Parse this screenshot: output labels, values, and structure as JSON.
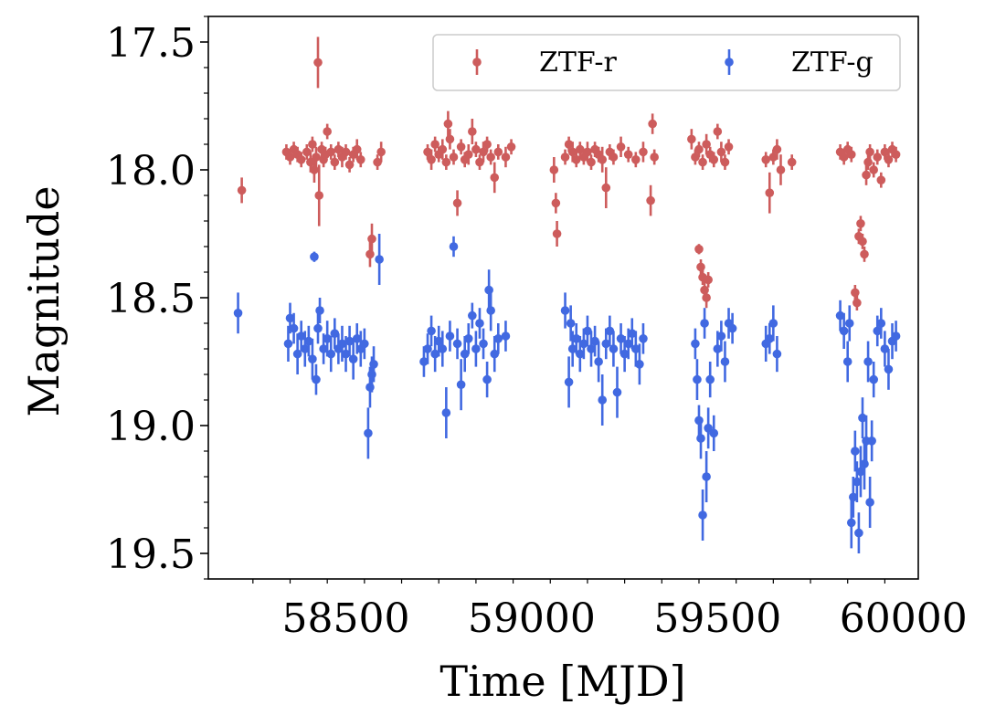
{
  "chart_data": {
    "type": "scatter",
    "xlabel": "Time [MJD]",
    "ylabel": "Magnitude",
    "xlim": [
      58130,
      60040
    ],
    "ylim": [
      19.6,
      17.4
    ],
    "y_inverted": true,
    "x_ticks": [
      58500,
      59000,
      59500,
      60000
    ],
    "x_tick_labels": [
      "58500",
      "59000",
      "59500",
      "60000"
    ],
    "y_ticks": [
      17.5,
      18.0,
      18.5,
      19.0,
      19.5
    ],
    "y_tick_labels": [
      "17.5",
      "18.0",
      "18.5",
      "19.0",
      "19.5"
    ],
    "grid": false,
    "legend": {
      "position": "top-right",
      "columns": 2
    },
    "series": [
      {
        "name": "ZTF-r",
        "color": "#cd5c5c",
        "points": [
          [
            58220,
            18.08,
            0.05
          ],
          [
            58340,
            17.93,
            0.03
          ],
          [
            58350,
            17.95,
            0.03
          ],
          [
            58360,
            17.92,
            0.03
          ],
          [
            58370,
            17.94,
            0.03
          ],
          [
            58380,
            17.96,
            0.03
          ],
          [
            58395,
            17.93,
            0.03
          ],
          [
            58405,
            17.97,
            0.04
          ],
          [
            58410,
            17.9,
            0.03
          ],
          [
            58415,
            18.0,
            0.05
          ],
          [
            58420,
            17.95,
            0.04
          ],
          [
            58425,
            17.58,
            0.1
          ],
          [
            58428,
            18.1,
            0.12
          ],
          [
            58435,
            17.92,
            0.03
          ],
          [
            58440,
            17.96,
            0.03
          ],
          [
            58445,
            17.94,
            0.03
          ],
          [
            58450,
            17.85,
            0.03
          ],
          [
            58460,
            17.93,
            0.03
          ],
          [
            58470,
            17.97,
            0.03
          ],
          [
            58480,
            17.92,
            0.03
          ],
          [
            58490,
            17.95,
            0.04
          ],
          [
            58500,
            17.93,
            0.03
          ],
          [
            58510,
            17.98,
            0.03
          ],
          [
            58520,
            17.94,
            0.03
          ],
          [
            58530,
            17.92,
            0.04
          ],
          [
            58540,
            17.96,
            0.03
          ],
          [
            58565,
            18.33,
            0.05
          ],
          [
            58570,
            18.27,
            0.06
          ],
          [
            58585,
            17.97,
            0.03
          ],
          [
            58595,
            17.93,
            0.04
          ],
          [
            58720,
            17.93,
            0.03
          ],
          [
            58730,
            17.96,
            0.04
          ],
          [
            58740,
            17.9,
            0.03
          ],
          [
            58750,
            17.94,
            0.03
          ],
          [
            58760,
            17.92,
            0.04
          ],
          [
            58770,
            17.97,
            0.03
          ],
          [
            58775,
            17.82,
            0.05
          ],
          [
            58780,
            17.88,
            0.04
          ],
          [
            58790,
            17.95,
            0.03
          ],
          [
            58800,
            18.13,
            0.05
          ],
          [
            58810,
            17.91,
            0.03
          ],
          [
            58820,
            17.96,
            0.03
          ],
          [
            58830,
            17.94,
            0.04
          ],
          [
            58840,
            17.85,
            0.05
          ],
          [
            58850,
            17.92,
            0.03
          ],
          [
            58860,
            17.97,
            0.03
          ],
          [
            58870,
            17.93,
            0.04
          ],
          [
            58880,
            17.9,
            0.03
          ],
          [
            58890,
            17.95,
            0.03
          ],
          [
            58900,
            18.03,
            0.06
          ],
          [
            58910,
            17.93,
            0.03
          ],
          [
            58930,
            17.95,
            0.04
          ],
          [
            58945,
            17.91,
            0.03
          ],
          [
            59060,
            18.0,
            0.05
          ],
          [
            59065,
            18.13,
            0.04
          ],
          [
            59068,
            18.25,
            0.05
          ],
          [
            59090,
            17.95,
            0.03
          ],
          [
            59100,
            17.9,
            0.03
          ],
          [
            59110,
            17.93,
            0.04
          ],
          [
            59120,
            17.96,
            0.03
          ],
          [
            59130,
            17.92,
            0.03
          ],
          [
            59140,
            17.95,
            0.03
          ],
          [
            59150,
            17.93,
            0.04
          ],
          [
            59160,
            17.97,
            0.03
          ],
          [
            59170,
            17.92,
            0.03
          ],
          [
            59180,
            17.94,
            0.03
          ],
          [
            59190,
            17.96,
            0.05
          ],
          [
            59200,
            18.07,
            0.08
          ],
          [
            59210,
            17.93,
            0.03
          ],
          [
            59220,
            17.95,
            0.03
          ],
          [
            59240,
            17.91,
            0.04
          ],
          [
            59260,
            17.94,
            0.03
          ],
          [
            59280,
            17.96,
            0.03
          ],
          [
            59300,
            17.93,
            0.04
          ],
          [
            59320,
            18.12,
            0.06
          ],
          [
            59325,
            17.82,
            0.04
          ],
          [
            59330,
            17.95,
            0.03
          ],
          [
            59430,
            17.88,
            0.04
          ],
          [
            59440,
            17.95,
            0.03
          ],
          [
            59450,
            17.92,
            0.03
          ],
          [
            59460,
            17.97,
            0.03
          ],
          [
            59470,
            17.9,
            0.04
          ],
          [
            59480,
            17.94,
            0.03
          ],
          [
            59490,
            17.96,
            0.03
          ],
          [
            59500,
            17.85,
            0.03
          ],
          [
            59510,
            17.93,
            0.04
          ],
          [
            59520,
            17.97,
            0.03
          ],
          [
            59530,
            17.91,
            0.03
          ],
          [
            59450,
            18.31,
            0.02
          ],
          [
            59455,
            18.38,
            0.03
          ],
          [
            59460,
            18.42,
            0.03
          ],
          [
            59465,
            18.47,
            0.04
          ],
          [
            59470,
            18.5,
            0.04
          ],
          [
            59475,
            18.43,
            0.03
          ],
          [
            59630,
            17.96,
            0.03
          ],
          [
            59640,
            18.09,
            0.08
          ],
          [
            59650,
            17.95,
            0.03
          ],
          [
            59660,
            17.92,
            0.04
          ],
          [
            59670,
            18.0,
            0.06
          ],
          [
            59700,
            17.97,
            0.03
          ],
          [
            59830,
            17.93,
            0.03
          ],
          [
            59840,
            17.95,
            0.03
          ],
          [
            59850,
            17.92,
            0.03
          ],
          [
            59860,
            17.94,
            0.03
          ],
          [
            59870,
            18.48,
            0.03
          ],
          [
            59875,
            18.52,
            0.03
          ],
          [
            59880,
            18.26,
            0.03
          ],
          [
            59885,
            18.21,
            0.03
          ],
          [
            59890,
            18.28,
            0.03
          ],
          [
            59895,
            18.33,
            0.03
          ],
          [
            59900,
            18.02,
            0.04
          ],
          [
            59905,
            17.97,
            0.03
          ],
          [
            59910,
            17.93,
            0.03
          ],
          [
            59920,
            18.0,
            0.03
          ],
          [
            59930,
            17.95,
            0.03
          ],
          [
            59940,
            18.04,
            0.03
          ],
          [
            59950,
            17.93,
            0.03
          ],
          [
            59960,
            17.96,
            0.03
          ],
          [
            59970,
            17.92,
            0.03
          ],
          [
            59980,
            17.94,
            0.03
          ]
        ]
      },
      {
        "name": "ZTF-g",
        "color": "#4169e1",
        "points": [
          [
            58210,
            18.56,
            0.08
          ],
          [
            58345,
            18.68,
            0.07
          ],
          [
            58350,
            18.58,
            0.06
          ],
          [
            58360,
            18.62,
            0.06
          ],
          [
            58370,
            18.72,
            0.08
          ],
          [
            58380,
            18.65,
            0.06
          ],
          [
            58390,
            18.7,
            0.07
          ],
          [
            58400,
            18.67,
            0.06
          ],
          [
            58410,
            18.74,
            0.08
          ],
          [
            58415,
            18.34,
            0.02
          ],
          [
            58420,
            18.82,
            0.06
          ],
          [
            58425,
            18.62,
            0.06
          ],
          [
            58430,
            18.55,
            0.05
          ],
          [
            58440,
            18.7,
            0.06
          ],
          [
            58450,
            18.66,
            0.07
          ],
          [
            58460,
            18.72,
            0.07
          ],
          [
            58470,
            18.64,
            0.06
          ],
          [
            58480,
            18.7,
            0.06
          ],
          [
            58490,
            18.68,
            0.07
          ],
          [
            58500,
            18.72,
            0.07
          ],
          [
            58510,
            18.67,
            0.06
          ],
          [
            58520,
            18.74,
            0.08
          ],
          [
            58530,
            18.66,
            0.06
          ],
          [
            58540,
            18.7,
            0.07
          ],
          [
            58550,
            18.68,
            0.06
          ],
          [
            58560,
            19.03,
            0.1
          ],
          [
            58565,
            18.85,
            0.08
          ],
          [
            58570,
            18.8,
            0.07
          ],
          [
            58575,
            18.76,
            0.07
          ],
          [
            58590,
            18.35,
            0.1
          ],
          [
            58710,
            18.75,
            0.06
          ],
          [
            58720,
            18.7,
            0.06
          ],
          [
            58730,
            18.63,
            0.06
          ],
          [
            58740,
            18.72,
            0.07
          ],
          [
            58750,
            18.67,
            0.06
          ],
          [
            58760,
            18.7,
            0.07
          ],
          [
            58770,
            18.95,
            0.1
          ],
          [
            58780,
            18.65,
            0.06
          ],
          [
            58790,
            18.3,
            0.04
          ],
          [
            58800,
            18.68,
            0.06
          ],
          [
            58810,
            18.84,
            0.1
          ],
          [
            58820,
            18.72,
            0.07
          ],
          [
            58830,
            18.66,
            0.06
          ],
          [
            58840,
            18.57,
            0.05
          ],
          [
            58850,
            18.7,
            0.07
          ],
          [
            58860,
            18.6,
            0.06
          ],
          [
            58870,
            18.68,
            0.06
          ],
          [
            58880,
            18.82,
            0.07
          ],
          [
            58885,
            18.47,
            0.08
          ],
          [
            58890,
            18.55,
            0.08
          ],
          [
            58900,
            18.72,
            0.07
          ],
          [
            58910,
            18.66,
            0.06
          ],
          [
            58930,
            18.65,
            0.06
          ],
          [
            59090,
            18.55,
            0.07
          ],
          [
            59100,
            18.83,
            0.1
          ],
          [
            59105,
            18.6,
            0.07
          ],
          [
            59110,
            18.7,
            0.07
          ],
          [
            59120,
            18.66,
            0.06
          ],
          [
            59130,
            18.72,
            0.07
          ],
          [
            59140,
            18.68,
            0.06
          ],
          [
            59150,
            18.63,
            0.06
          ],
          [
            59160,
            18.7,
            0.07
          ],
          [
            59170,
            18.67,
            0.06
          ],
          [
            59180,
            18.75,
            0.08
          ],
          [
            59190,
            18.9,
            0.1
          ],
          [
            59200,
            18.68,
            0.06
          ],
          [
            59210,
            18.63,
            0.06
          ],
          [
            59220,
            18.7,
            0.07
          ],
          [
            59230,
            18.87,
            0.1
          ],
          [
            59240,
            18.66,
            0.06
          ],
          [
            59250,
            18.72,
            0.07
          ],
          [
            59260,
            18.68,
            0.06
          ],
          [
            59270,
            18.64,
            0.06
          ],
          [
            59280,
            18.7,
            0.07
          ],
          [
            59290,
            18.76,
            0.08
          ],
          [
            59300,
            18.66,
            0.06
          ],
          [
            59440,
            18.68,
            0.06
          ],
          [
            59445,
            18.82,
            0.08
          ],
          [
            59450,
            18.98,
            0.06
          ],
          [
            59455,
            19.05,
            0.08
          ],
          [
            59460,
            19.35,
            0.1
          ],
          [
            59465,
            18.6,
            0.06
          ],
          [
            59470,
            19.2,
            0.1
          ],
          [
            59475,
            19.01,
            0.08
          ],
          [
            59480,
            18.82,
            0.07
          ],
          [
            59490,
            19.03,
            0.07
          ],
          [
            59500,
            18.7,
            0.07
          ],
          [
            59510,
            18.65,
            0.06
          ],
          [
            59520,
            18.75,
            0.08
          ],
          [
            59530,
            18.6,
            0.06
          ],
          [
            59540,
            18.62,
            0.06
          ],
          [
            59630,
            18.68,
            0.07
          ],
          [
            59640,
            18.66,
            0.06
          ],
          [
            59650,
            18.6,
            0.07
          ],
          [
            59660,
            18.72,
            0.07
          ],
          [
            59830,
            18.57,
            0.06
          ],
          [
            59840,
            18.63,
            0.07
          ],
          [
            59850,
            18.75,
            0.08
          ],
          [
            59855,
            18.6,
            0.07
          ],
          [
            59860,
            19.38,
            0.1
          ],
          [
            59865,
            19.28,
            0.08
          ],
          [
            59870,
            19.1,
            0.08
          ],
          [
            59875,
            19.22,
            0.08
          ],
          [
            59880,
            19.42,
            0.08
          ],
          [
            59885,
            19.18,
            0.1
          ],
          [
            59890,
            18.97,
            0.08
          ],
          [
            59895,
            19.15,
            0.1
          ],
          [
            59900,
            19.06,
            0.1
          ],
          [
            59905,
            18.75,
            0.08
          ],
          [
            59910,
            19.3,
            0.1
          ],
          [
            59915,
            19.06,
            0.08
          ],
          [
            59920,
            18.82,
            0.07
          ],
          [
            59930,
            18.63,
            0.06
          ],
          [
            59940,
            18.6,
            0.06
          ],
          [
            59950,
            18.7,
            0.07
          ],
          [
            59960,
            18.78,
            0.08
          ],
          [
            59970,
            18.67,
            0.07
          ],
          [
            59980,
            18.65,
            0.06
          ]
        ]
      }
    ]
  }
}
